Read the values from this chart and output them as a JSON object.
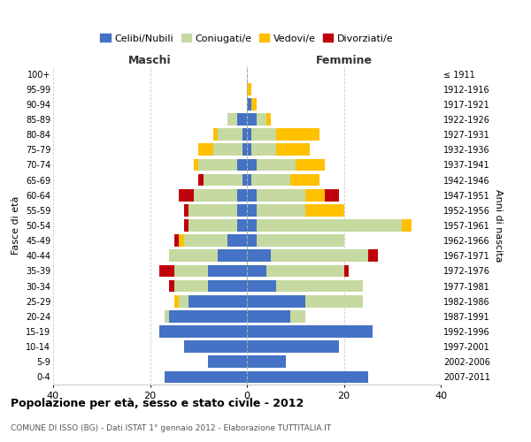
{
  "age_groups": [
    "0-4",
    "5-9",
    "10-14",
    "15-19",
    "20-24",
    "25-29",
    "30-34",
    "35-39",
    "40-44",
    "45-49",
    "50-54",
    "55-59",
    "60-64",
    "65-69",
    "70-74",
    "75-79",
    "80-84",
    "85-89",
    "90-94",
    "95-99",
    "100+"
  ],
  "birth_years": [
    "2007-2011",
    "2002-2006",
    "1997-2001",
    "1992-1996",
    "1987-1991",
    "1982-1986",
    "1977-1981",
    "1972-1976",
    "1967-1971",
    "1962-1966",
    "1957-1961",
    "1952-1956",
    "1947-1951",
    "1942-1946",
    "1937-1941",
    "1932-1936",
    "1927-1931",
    "1922-1926",
    "1917-1921",
    "1912-1916",
    "≤ 1911"
  ],
  "maschi": {
    "celibi": [
      17,
      8,
      13,
      18,
      16,
      12,
      8,
      8,
      6,
      4,
      2,
      2,
      2,
      1,
      2,
      1,
      1,
      2,
      0,
      0,
      0
    ],
    "coniugati": [
      0,
      0,
      0,
      0,
      1,
      2,
      7,
      7,
      10,
      9,
      10,
      10,
      9,
      8,
      8,
      6,
      5,
      2,
      0,
      0,
      0
    ],
    "vedovi": [
      0,
      0,
      0,
      0,
      0,
      1,
      0,
      0,
      0,
      1,
      0,
      0,
      0,
      0,
      1,
      3,
      1,
      0,
      0,
      0,
      0
    ],
    "divorziati": [
      0,
      0,
      0,
      0,
      0,
      0,
      1,
      3,
      0,
      1,
      1,
      1,
      3,
      1,
      0,
      0,
      0,
      0,
      0,
      0,
      0
    ]
  },
  "femmine": {
    "nubili": [
      25,
      8,
      19,
      26,
      9,
      12,
      6,
      4,
      5,
      2,
      2,
      2,
      2,
      1,
      2,
      1,
      1,
      2,
      1,
      0,
      0
    ],
    "coniugate": [
      0,
      0,
      0,
      0,
      3,
      12,
      18,
      16,
      20,
      18,
      30,
      10,
      10,
      8,
      8,
      5,
      5,
      2,
      0,
      0,
      0
    ],
    "vedove": [
      0,
      0,
      0,
      0,
      0,
      0,
      0,
      0,
      0,
      0,
      2,
      8,
      4,
      6,
      6,
      7,
      9,
      1,
      1,
      1,
      0
    ],
    "divorziate": [
      0,
      0,
      0,
      0,
      0,
      0,
      0,
      1,
      2,
      0,
      0,
      0,
      3,
      0,
      0,
      0,
      0,
      0,
      0,
      0,
      0
    ]
  },
  "colors": {
    "celibi_nubili": "#4472c4",
    "coniugati": "#c5d9a0",
    "vedovi": "#ffc000",
    "divorziati": "#c0000b"
  },
  "xlim": 40,
  "title": "Popolazione per età, sesso e stato civile - 2012",
  "subtitle": "COMUNE DI ISSO (BG) - Dati ISTAT 1° gennaio 2012 - Elaborazione TUTTITALIA.IT",
  "ylabel_left": "Fasce di età",
  "ylabel_right": "Anni di nascita",
  "xlabel_maschi": "Maschi",
  "xlabel_femmine": "Femmine",
  "legend_labels": [
    "Celibi/Nubili",
    "Coniugati/e",
    "Vedovi/e",
    "Divorziati/e"
  ]
}
